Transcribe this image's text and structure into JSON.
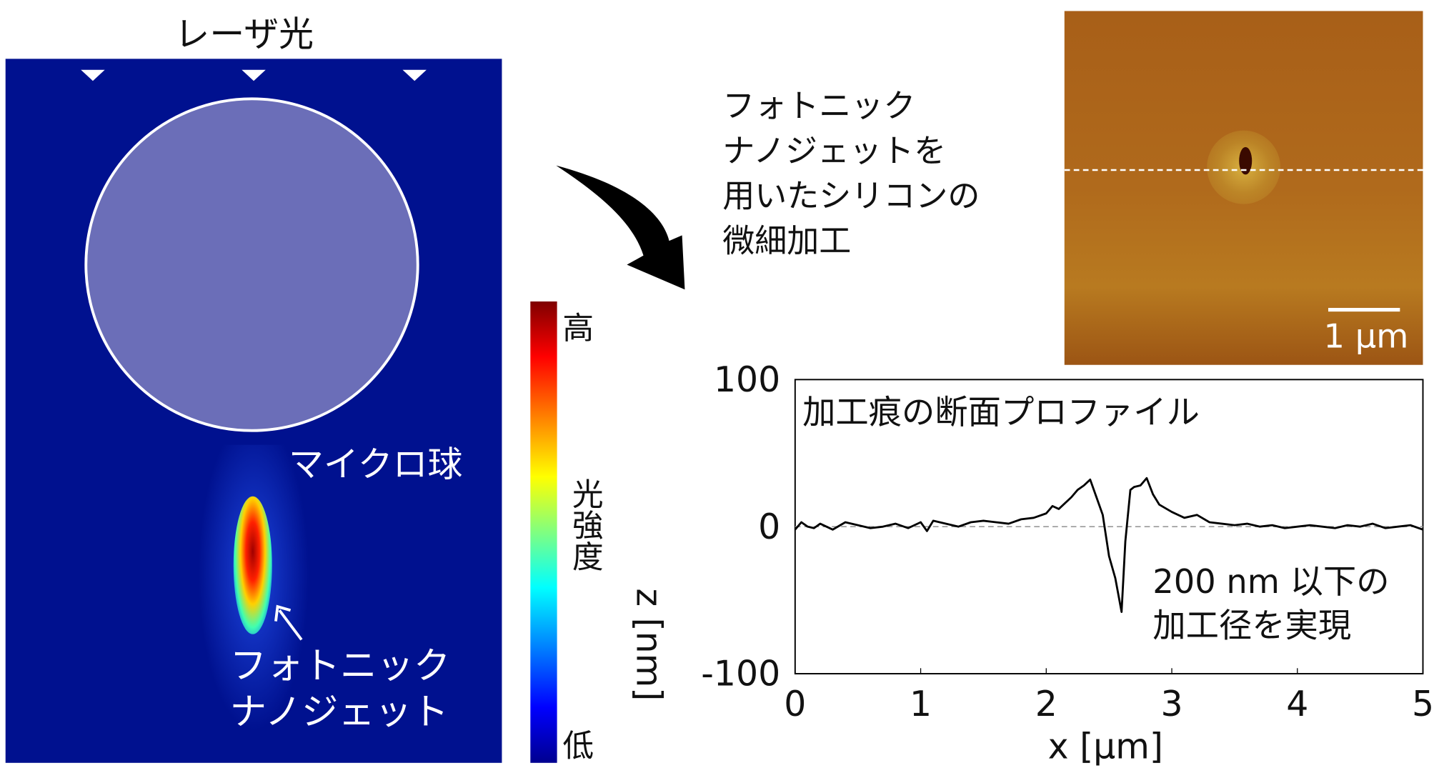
{
  "left_panel": {
    "title": "レーザ光",
    "sphere_label": "マイクロ球",
    "jet_label_line1": "フォトニック",
    "jet_label_line2": "ナノジェット",
    "colorbar": {
      "high": "高",
      "low": "低",
      "label": "光強度"
    }
  },
  "caption": [
    "フォトニック",
    "ナノジェットを",
    "用いたシリコンの",
    "微細加工"
  ],
  "afm": {
    "scale_bar": "1 μm"
  },
  "colors": {
    "field_bg": "#00118f",
    "sphere": "#6b6eb8",
    "afm": "#b06a1c"
  },
  "chart_data": {
    "type": "line",
    "title": "加工痕の断面プロファイル",
    "annotation_line1": "200 nm 以下の",
    "annotation_line2": "加工径を実現",
    "xlabel": "x [μm]",
    "ylabel": "z [nm]",
    "xlim": [
      0,
      5
    ],
    "ylim": [
      -100,
      100
    ],
    "xticks": [
      "0",
      "1",
      "2",
      "3",
      "4",
      "5"
    ],
    "yticks": [
      "100",
      "0",
      "-100"
    ],
    "reference_line": 0,
    "x": [
      0,
      0.05,
      0.1,
      0.15,
      0.2,
      0.3,
      0.4,
      0.5,
      0.6,
      0.7,
      0.8,
      0.9,
      1.0,
      1.05,
      1.1,
      1.2,
      1.3,
      1.4,
      1.5,
      1.6,
      1.7,
      1.8,
      1.9,
      2.0,
      2.05,
      2.1,
      2.2,
      2.25,
      2.3,
      2.35,
      2.4,
      2.45,
      2.5,
      2.55,
      2.6,
      2.63,
      2.67,
      2.7,
      2.75,
      2.8,
      2.85,
      2.9,
      3.0,
      3.1,
      3.2,
      3.3,
      3.4,
      3.5,
      3.6,
      3.7,
      3.8,
      3.9,
      4.0,
      4.1,
      4.2,
      4.3,
      4.4,
      4.5,
      4.6,
      4.7,
      4.8,
      4.9,
      5.0
    ],
    "z": [
      -2,
      3,
      0,
      -1,
      2,
      -2,
      3,
      1,
      -1,
      0,
      2,
      -1,
      3,
      -3,
      4,
      2,
      0,
      3,
      4,
      3,
      2,
      5,
      6,
      9,
      14,
      12,
      20,
      25,
      28,
      32,
      20,
      8,
      -20,
      -35,
      -58,
      -10,
      25,
      27,
      28,
      33,
      22,
      15,
      10,
      6,
      8,
      3,
      2,
      1,
      2,
      0,
      1,
      -1,
      0,
      1,
      0,
      -1,
      1,
      0,
      2,
      -1,
      0,
      1,
      -2
    ]
  }
}
